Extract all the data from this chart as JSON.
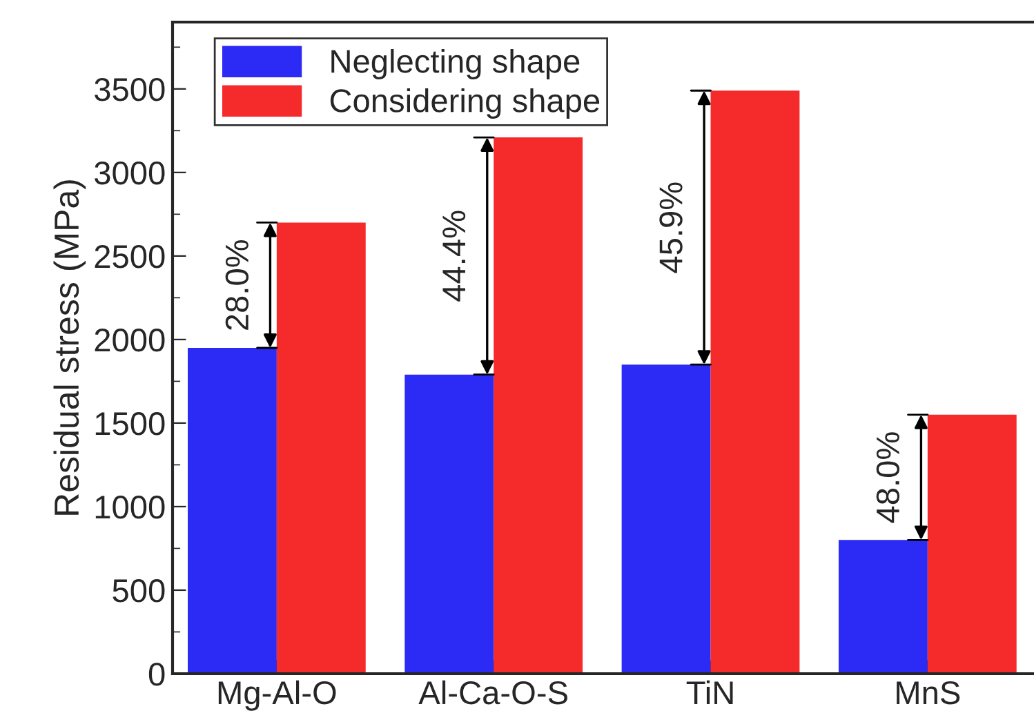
{
  "chart_data": {
    "type": "bar",
    "ylabel": "Residual stress (MPa)",
    "categories": [
      "Mg-Al-O",
      "Al-Ca-O-S",
      "TiN",
      "MnS"
    ],
    "series": [
      {
        "name": "Neglecting shape",
        "color": "#2b2bf5",
        "values": [
          1950,
          1790,
          1850,
          800
        ]
      },
      {
        "name": "Considering shape",
        "color": "#f52b2b",
        "values": [
          2700,
          3210,
          3490,
          1550
        ]
      }
    ],
    "ylim": [
      0,
      3900
    ],
    "yticks": [
      0,
      500,
      1000,
      1500,
      2000,
      2500,
      3000,
      3500
    ],
    "annotations": [
      {
        "text": "28.0%",
        "x": "Mg-Al-O",
        "y": 1950
      },
      {
        "text": "44.4%",
        "x": "Al-Ca-O-S",
        "y": 1790
      },
      {
        "text": "45.9%",
        "x": "TiN",
        "y": 1850
      },
      {
        "text": "48.0%",
        "x": "MnS",
        "y": 800
      }
    ],
    "legend": "top left",
    "grid": false
  }
}
